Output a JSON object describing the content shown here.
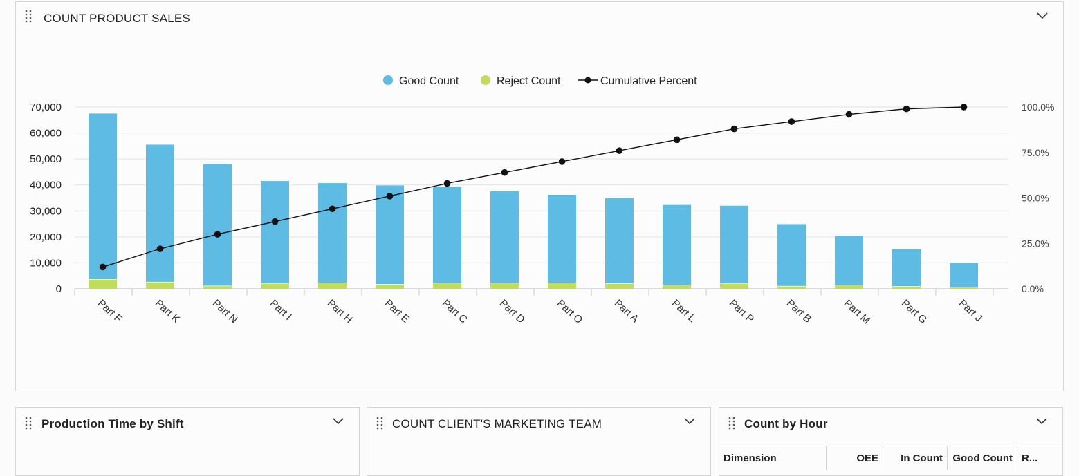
{
  "main_panel": {
    "title": "COUNT PRODUCT SALES"
  },
  "legend": [
    {
      "label": "Good Count",
      "color": "#5dbbe4",
      "shape": "circle"
    },
    {
      "label": "Reject Count",
      "color": "#bfdd5b",
      "shape": "circle"
    },
    {
      "label": "Cumulative Percent",
      "color": "#111111",
      "shape": "line-dot"
    }
  ],
  "chart_data": {
    "type": "bar",
    "stacked": true,
    "categories": [
      "Part F",
      "Part K",
      "Part N",
      "Part I",
      "Part H",
      "Part E",
      "Part C",
      "Part D",
      "Part O",
      "Part A",
      "Part L",
      "Part P",
      "Part B",
      "Part M",
      "Part G",
      "Part J"
    ],
    "series": [
      {
        "name": "Good Count",
        "type": "bar",
        "axis": "left",
        "color": "#5dbbe4",
        "values": [
          64000,
          53000,
          47000,
          39500,
          38500,
          38200,
          37200,
          35500,
          34000,
          33000,
          31000,
          30000,
          24000,
          19000,
          14500,
          9500
        ]
      },
      {
        "name": "Reject Count",
        "type": "bar",
        "axis": "left",
        "color": "#bfdd5b",
        "values": [
          3500,
          2500,
          1000,
          2000,
          2200,
          1600,
          2100,
          2100,
          2200,
          1900,
          1300,
          2000,
          900,
          1300,
          800,
          500
        ]
      },
      {
        "name": "Cumulative Percent",
        "type": "line",
        "axis": "right",
        "color": "#111111",
        "values": [
          12,
          22,
          30,
          37,
          44,
          51,
          58,
          64,
          70,
          76,
          82,
          88,
          92,
          96,
          99,
          100
        ]
      }
    ],
    "ylim": [
      0,
      70000
    ],
    "yticks": [
      "70,000",
      "60,000",
      "50,000",
      "40,000",
      "30,000",
      "20,000",
      "10,000",
      "0"
    ],
    "ytick_values": [
      70000,
      60000,
      50000,
      40000,
      30000,
      20000,
      10000,
      0
    ],
    "y2lim": [
      0,
      100
    ],
    "y2ticks": [
      "100.0%",
      "75.0%",
      "50.0%",
      "25.0%",
      "0.0%"
    ],
    "y2tick_values": [
      100,
      75,
      50,
      25,
      0
    ],
    "legend_position": "top-center",
    "grid": true
  },
  "bottom_panels": [
    {
      "title": "Production Time by Shift"
    },
    {
      "title": "COUNT CLIENT'S MARKETING TEAM"
    },
    {
      "title": "Count by Hour",
      "table": {
        "headers": [
          "Dimension",
          "OEE",
          "In Count",
          "Good Count",
          "R..."
        ]
      }
    }
  ]
}
